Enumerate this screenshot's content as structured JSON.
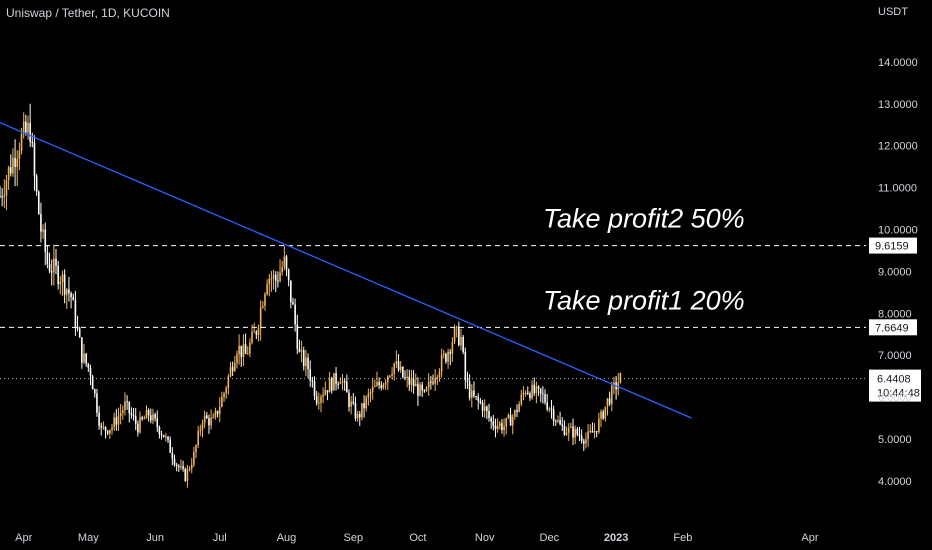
{
  "header": {
    "title": "Uniswap / Tether, 1D, KUCOIN",
    "currency": "USDT"
  },
  "colors": {
    "background": "#000000",
    "trendline": "#2962ff",
    "candle": "#f0b45a",
    "last_price_tag": "#ffffff",
    "level_line": "#ffffff"
  },
  "chart_data": {
    "type": "candlestick",
    "title": "Uniswap / Tether, 1D, KUCOIN",
    "ylabel": "USDT",
    "ylim": [
      3.4,
      15.0
    ],
    "y_ticks": [
      "4.0000",
      "5.0000",
      "6.0000",
      "7.0000",
      "8.0000",
      "9.0000",
      "10.0000",
      "11.0000",
      "12.0000",
      "13.0000",
      "14.0000"
    ],
    "x_ticks": [
      "Apr",
      "May",
      "Jun",
      "Jul",
      "Aug",
      "Sep",
      "Oct",
      "Nov",
      "Dec",
      "2023",
      "Feb",
      "Apr"
    ],
    "x_range_days": [
      -6,
      396
    ],
    "x_tick_days": [
      5,
      35,
      66,
      96,
      127,
      158,
      188,
      219,
      249,
      280,
      311,
      370
    ],
    "price_path": [
      [
        -6,
        10.8
      ],
      [
        3,
        12.1
      ],
      [
        8,
        12.4
      ],
      [
        10,
        11.2
      ],
      [
        13,
        10.0
      ],
      [
        16,
        9.2
      ],
      [
        22,
        8.9
      ],
      [
        27,
        8.4
      ],
      [
        32,
        7.0
      ],
      [
        36,
        6.6
      ],
      [
        41,
        5.2
      ],
      [
        46,
        5.3
      ],
      [
        52,
        5.8
      ],
      [
        58,
        5.3
      ],
      [
        63,
        5.6
      ],
      [
        70,
        5.1
      ],
      [
        76,
        4.4
      ],
      [
        80,
        4.1
      ],
      [
        84,
        4.6
      ],
      [
        88,
        5.5
      ],
      [
        93,
        5.4
      ],
      [
        98,
        6.1
      ],
      [
        104,
        7.2
      ],
      [
        108,
        7.0
      ],
      [
        113,
        7.6
      ],
      [
        118,
        8.9
      ],
      [
        122,
        8.8
      ],
      [
        126,
        9.2
      ],
      [
        130,
        8.1
      ],
      [
        133,
        7.0
      ],
      [
        137,
        6.7
      ],
      [
        141,
        6.0
      ],
      [
        147,
        6.3
      ],
      [
        152,
        6.5
      ],
      [
        156,
        5.9
      ],
      [
        160,
        5.5
      ],
      [
        166,
        6.1
      ],
      [
        172,
        6.4
      ],
      [
        177,
        6.8
      ],
      [
        182,
        6.4
      ],
      [
        186,
        6.3
      ],
      [
        191,
        6.0
      ],
      [
        196,
        6.6
      ],
      [
        201,
        7.0
      ],
      [
        205,
        7.5
      ],
      [
        208,
        7.4
      ],
      [
        210,
        6.4
      ],
      [
        213,
        6.0
      ],
      [
        218,
        5.8
      ],
      [
        222,
        5.4
      ],
      [
        228,
        5.3
      ],
      [
        233,
        5.6
      ],
      [
        238,
        6.2
      ],
      [
        242,
        6.1
      ],
      [
        246,
        6.0
      ],
      [
        250,
        5.7
      ],
      [
        254,
        5.3
      ],
      [
        258,
        5.2
      ],
      [
        263,
        5.1
      ],
      [
        266,
        5.0
      ],
      [
        270,
        5.2
      ],
      [
        273,
        5.5
      ],
      [
        276,
        5.9
      ],
      [
        279,
        6.2
      ],
      [
        282,
        6.44
      ]
    ],
    "trendline": {
      "from": [
        -6,
        12.55
      ],
      "to": [
        315,
        5.5
      ]
    },
    "levels": [
      {
        "label": "Take profit2 50%",
        "value": 9.6159,
        "tag": "9.6159"
      },
      {
        "label": "Take profit1 20%",
        "value": 7.6649,
        "tag": "7.6649"
      }
    ],
    "last_price": {
      "value": 6.4408,
      "tag": "6.4408",
      "countdown": "10:44:48"
    }
  }
}
